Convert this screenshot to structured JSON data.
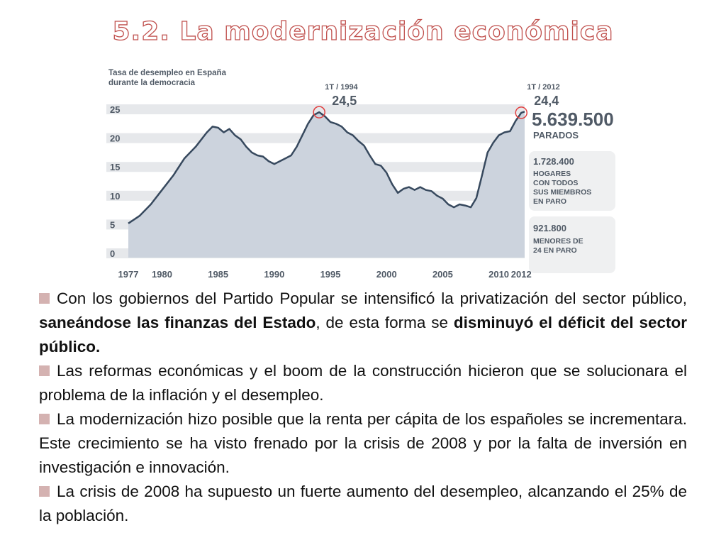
{
  "slide": {
    "title": "5.2. La modernización económica"
  },
  "chart_data": {
    "type": "area",
    "title": "Tasa de desempleo en España",
    "subtitle": "durante la democracia",
    "x_ticks": [
      1977,
      1980,
      1985,
      1990,
      1995,
      2000,
      2005,
      2010,
      2012
    ],
    "y_ticks": [
      0,
      5,
      10,
      15,
      20,
      25
    ],
    "xlim": [
      1977,
      2012.3
    ],
    "ylim": [
      0,
      25.5
    ],
    "grid": true,
    "x": [
      1977,
      1978,
      1979,
      1980,
      1981,
      1982,
      1983,
      1984,
      1984.5,
      1985,
      1985.5,
      1986,
      1986.5,
      1987,
      1987.5,
      1988,
      1988.5,
      1989,
      1989.5,
      1990,
      1990.5,
      1991,
      1991.5,
      1992,
      1992.5,
      1993,
      1993.5,
      1994,
      1994.5,
      1995,
      1995.5,
      1996,
      1996.5,
      1997,
      1997.5,
      1998,
      1998.5,
      1999,
      1999.5,
      2000,
      2000.5,
      2001,
      2001.5,
      2002,
      2002.5,
      2003,
      2003.5,
      2004,
      2004.5,
      2005,
      2005.5,
      2006,
      2006.5,
      2007,
      2007.5,
      2008,
      2008.5,
      2009,
      2009.5,
      2010,
      2010.5,
      2011,
      2011.5,
      2012,
      2012.3
    ],
    "values": [
      5.2,
      6.5,
      8.5,
      11.0,
      13.5,
      16.5,
      18.5,
      21.0,
      22.0,
      21.8,
      21.0,
      21.6,
      20.5,
      19.8,
      18.5,
      17.5,
      17.0,
      16.8,
      16.0,
      15.5,
      16.0,
      16.5,
      17.0,
      18.5,
      20.5,
      22.5,
      24.0,
      24.5,
      23.8,
      22.8,
      22.5,
      22.0,
      21.0,
      20.5,
      19.5,
      18.7,
      17.0,
      15.5,
      15.2,
      14.0,
      12.0,
      10.5,
      11.2,
      11.5,
      11.0,
      11.5,
      11.0,
      10.8,
      10.0,
      9.5,
      8.5,
      8.0,
      8.5,
      8.3,
      8.0,
      9.6,
      13.5,
      17.5,
      19.2,
      20.5,
      21.0,
      21.2,
      23.0,
      24.4,
      24.6
    ],
    "annotations": [
      {
        "label": "1T / 1994",
        "value": "24,5",
        "x": 1994,
        "y": 24.5
      },
      {
        "label": "1T / 2012",
        "value": "24,4",
        "x": 2012,
        "y": 24.4
      }
    ],
    "side_stats": {
      "main_number": "5.639.500",
      "main_label": "PARADOS",
      "box1_number": "1.728.400",
      "box1_lines": [
        "HOGARES",
        "CON TODOS",
        "SUS MIEMBROS",
        "EN PARO"
      ],
      "box2_number": "921.800",
      "box2_lines": [
        "MENORES DE",
        "24 EN PARO"
      ]
    },
    "colors": {
      "area": "#ccd3dd",
      "line": "#37495e",
      "grid_band": "#e6e8eb",
      "text": "#505a66",
      "highlight": "#e13f3f",
      "stat_box": "#eff0f1"
    }
  },
  "text": {
    "p1_a": "Con los gobiernos del Partido Popular se intensificó la privatización del sector público, ",
    "p1_b": "saneándose las finanzas del Estado",
    "p1_c": ", de esta forma se ",
    "p1_d": "disminuyó el déficit del sector público.",
    "p2": "Las reformas económicas y el boom de la construcción hicieron que se solucionara el problema de la inflación y el desempleo.",
    "p3": "La modernización  hizo posible que la renta per cápita de los españoles se incrementara. Este crecimiento se ha visto frenado por la crisis de 2008 y por la falta de inversión en investigación e innovación.",
    "p4": "La crisis de 2008 ha supuesto un fuerte aumento del desempleo, alcanzando el 25% de la población."
  }
}
